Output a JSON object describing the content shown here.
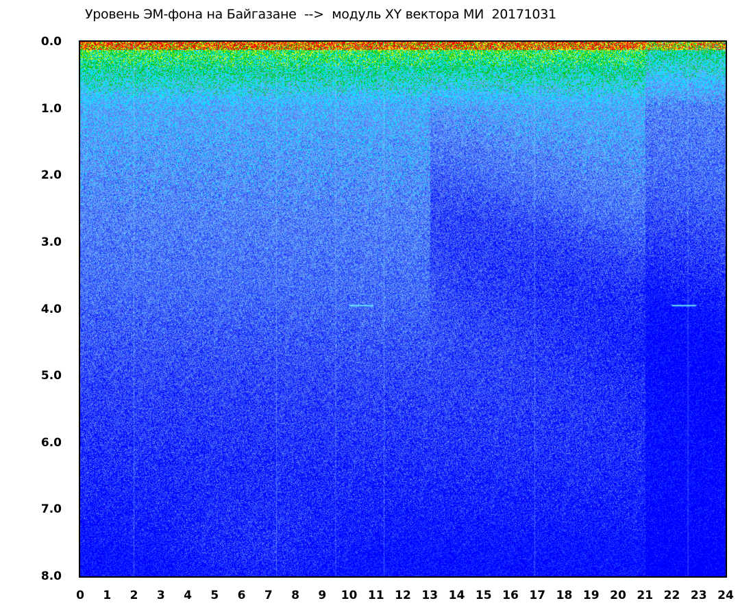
{
  "chart_data": {
    "type": "heatmap",
    "title": "Уровень ЭМ-фона на Байгазане  -->  модуль XY вектора МИ  20171031",
    "xlabel": "",
    "ylabel": "",
    "xlim": [
      0,
      24
    ],
    "ylim": [
      0,
      8
    ],
    "y_inverted": true,
    "x_ticks": [
      "0",
      "1",
      "2",
      "3",
      "4",
      "5",
      "6",
      "7",
      "8",
      "9",
      "10",
      "11",
      "12",
      "13",
      "14",
      "15",
      "16",
      "17",
      "18",
      "19",
      "20",
      "21",
      "22",
      "23",
      "24"
    ],
    "y_ticks": [
      "0.0",
      "1.0",
      "2.0",
      "3.0",
      "4.0",
      "5.0",
      "6.0",
      "7.0",
      "8.0"
    ],
    "grid": false,
    "colormap": [
      "#0000ff",
      "#1e3cff",
      "#5a78f0",
      "#64b4ff",
      "#00e6ff",
      "#00c800",
      "#ffff00",
      "#ff0000"
    ],
    "features": {
      "high_level_band_y": [
        0.0,
        1.0
      ],
      "cyan_markers": [
        {
          "x": [
            10.0,
            10.9
          ],
          "y": 3.95
        },
        {
          "x": [
            22.0,
            22.9
          ],
          "y": 3.95
        }
      ]
    }
  }
}
